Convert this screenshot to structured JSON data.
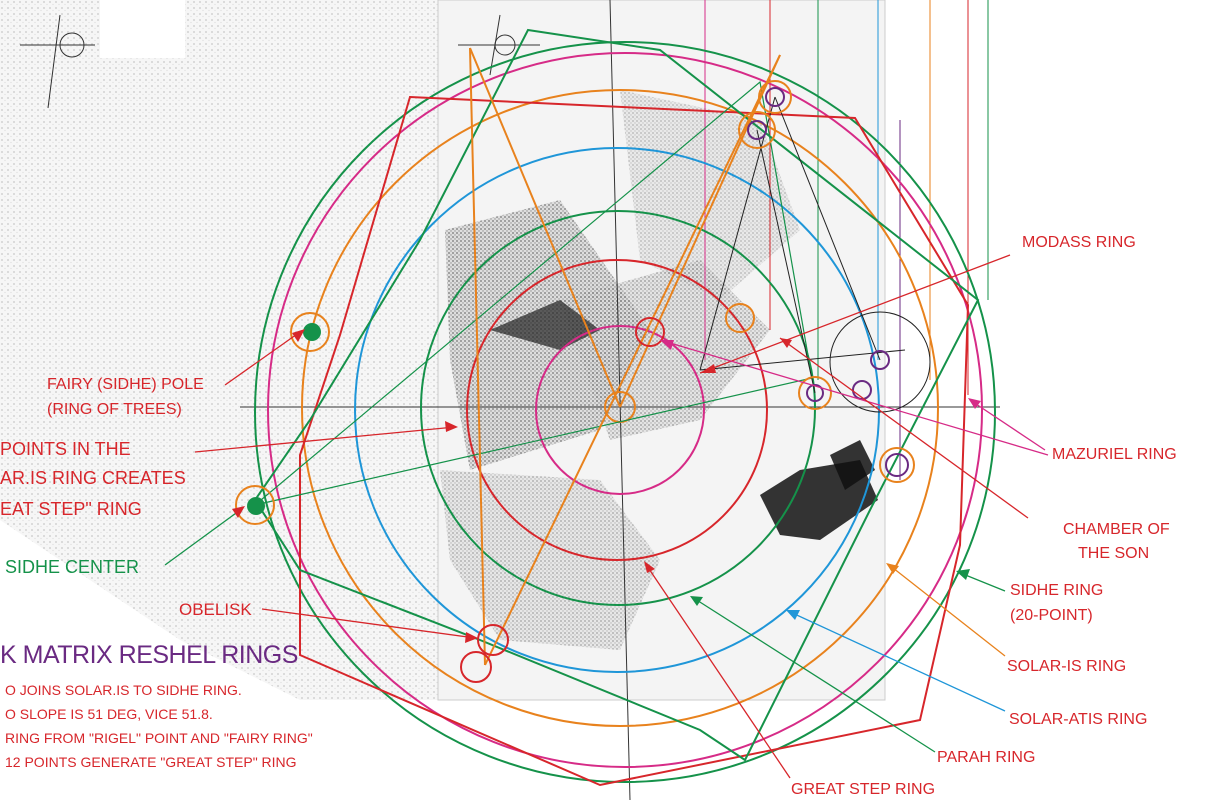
{
  "title": "K MATRIX RESHEL RINGS",
  "notes": [
    "O JOINS SOLAR.IS  TO SIDHE RING.",
    "O SLOPE IS 51 DEG, VICE 51.8.",
    "RING FROM \"RIGEL\" POINT AND \"FAIRY RING\"",
    "12 POINTS GENERATE \"GREAT STEP\" RING"
  ],
  "labels": {
    "modass_ring": "MODASS RING",
    "fairy_pole_1": "FAIRY (SIDHE) POLE",
    "fairy_pole_2": "(RING OF TREES)",
    "points_1": "POINTS IN THE",
    "points_2": "AR.IS RING CREATES",
    "points_3": "EAT STEP\" RING",
    "sidhe_center": "SIDHE CENTER",
    "obelisk": "OBELISK",
    "mazuriel_ring": "MAZURIEL RING",
    "chamber_1": "CHAMBER OF",
    "chamber_2": "THE SON",
    "sidhe_ring_1": "SIDHE RING",
    "sidhe_ring_2": "(20-POINT)",
    "solar_is_ring": "SOLAR-IS RING",
    "solar_atis_ring": "SOLAR-ATIS RING",
    "parah_ring": "PARAH RING",
    "great_step_ring": "GREAT STEP RING"
  },
  "colors": {
    "red": "#d7262b",
    "green": "#15924a",
    "magenta": "#d62b87",
    "orange": "#e8821d",
    "blue": "#1f96d8",
    "purple": "#6a2a82",
    "black": "#222222"
  }
}
